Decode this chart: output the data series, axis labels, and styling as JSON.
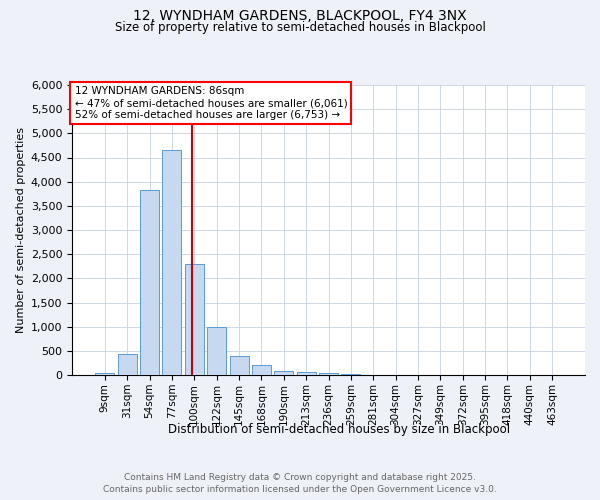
{
  "title1": "12, WYNDHAM GARDENS, BLACKPOOL, FY4 3NX",
  "title2": "Size of property relative to semi-detached houses in Blackpool",
  "xlabel": "Distribution of semi-detached houses by size in Blackpool",
  "ylabel": "Number of semi-detached properties",
  "bar_labels": [
    "9sqm",
    "31sqm",
    "54sqm",
    "77sqm",
    "100sqm",
    "122sqm",
    "145sqm",
    "168sqm",
    "190sqm",
    "213sqm",
    "236sqm",
    "259sqm",
    "281sqm",
    "304sqm",
    "327sqm",
    "349sqm",
    "372sqm",
    "395sqm",
    "418sqm",
    "440sqm",
    "463sqm"
  ],
  "bar_values": [
    50,
    440,
    3820,
    4660,
    2290,
    1000,
    400,
    210,
    90,
    70,
    40,
    20,
    10,
    0,
    0,
    0,
    0,
    0,
    0,
    0,
    0
  ],
  "bar_color": "#c6d9f0",
  "bar_edge_color": "#5b9bd5",
  "vline_color": "#cc0000",
  "vline_x": 3.89,
  "annotation_title": "12 WYNDHAM GARDENS: 86sqm",
  "annotation_line1": "← 47% of semi-detached houses are smaller (6,061)",
  "annotation_line2": "52% of semi-detached houses are larger (6,753) →",
  "ylim": [
    0,
    6000
  ],
  "yticks": [
    0,
    500,
    1000,
    1500,
    2000,
    2500,
    3000,
    3500,
    4000,
    4500,
    5000,
    5500,
    6000
  ],
  "footnote1": "Contains HM Land Registry data © Crown copyright and database right 2025.",
  "footnote2": "Contains public sector information licensed under the Open Government Licence v3.0.",
  "bg_color": "#eef2f8",
  "plot_bg_color": "#ffffff",
  "grid_color": "#c8d0e0"
}
